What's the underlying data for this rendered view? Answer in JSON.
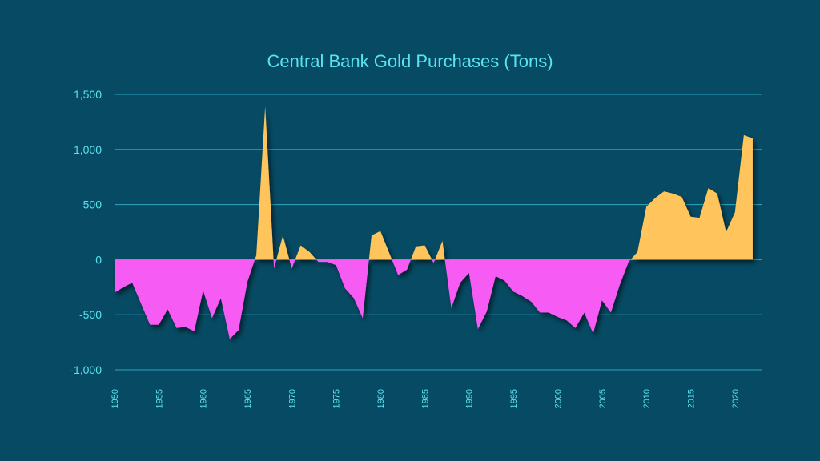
{
  "colors": {
    "background": "#064a63",
    "text": "#59e3f0",
    "grid": "#2fa8c0",
    "positive": "#ffc45c",
    "negative": "#f65bf4"
  },
  "chart_data": {
    "type": "area",
    "title": "Central Bank Gold Purchases (Tons)",
    "xlabel": "",
    "ylabel": "",
    "grid": true,
    "legend": "none",
    "xlim": [
      1950,
      2023
    ],
    "ylim": [
      -1000,
      1500
    ],
    "yticks": [
      1500,
      1000,
      500,
      0,
      -500,
      -1000
    ],
    "ytick_labels": [
      "1,500",
      "1,000",
      "500",
      "0",
      "-500",
      "-1,000"
    ],
    "xticks": [
      1950,
      1955,
      1960,
      1965,
      1970,
      1975,
      1980,
      1985,
      1990,
      1995,
      2000,
      2005,
      2010,
      2015,
      2020
    ],
    "xtick_labels": [
      "1950",
      "1955",
      "1960",
      "1965",
      "1970",
      "1975",
      "1980",
      "1985",
      "1990",
      "1995",
      "2000",
      "2005",
      "2010",
      "2015",
      "2020"
    ],
    "series": [
      {
        "x": [
          1950,
          1951,
          1952,
          1953,
          1954,
          1955,
          1956,
          1957,
          1958,
          1959,
          1960,
          1961,
          1962,
          1963,
          1964,
          1965,
          1966,
          1967,
          1968,
          1969,
          1970,
          1971,
          1972,
          1973,
          1974,
          1975,
          1976,
          1977,
          1978,
          1979,
          1980,
          1981,
          1982,
          1983,
          1984,
          1985,
          1986,
          1987,
          1988,
          1989,
          1990,
          1991,
          1992,
          1993,
          1994,
          1995,
          1996,
          1997,
          1998,
          1999,
          2000,
          2001,
          2002,
          2003,
          2004,
          2005,
          2006,
          2007,
          2008,
          2009,
          2010,
          2011,
          2012,
          2013,
          2014,
          2015,
          2016,
          2017,
          2018,
          2019,
          2020,
          2021,
          2022
        ],
        "values": [
          -300,
          -250,
          -210,
          -400,
          -590,
          -590,
          -450,
          -620,
          -610,
          -650,
          -280,
          -530,
          -350,
          -720,
          -640,
          -200,
          40,
          1390,
          -80,
          220,
          -80,
          130,
          70,
          -20,
          -20,
          -50,
          -260,
          -350,
          -530,
          220,
          260,
          60,
          -140,
          -90,
          120,
          130,
          -30,
          170,
          -440,
          -210,
          -120,
          -630,
          -470,
          -150,
          -190,
          -290,
          -330,
          -380,
          -480,
          -480,
          -520,
          -550,
          -620,
          -480,
          -670,
          -370,
          -480,
          -230,
          -20,
          70,
          480,
          560,
          620,
          600,
          570,
          390,
          380,
          650,
          600,
          250,
          430,
          1130,
          1100
        ]
      }
    ]
  }
}
